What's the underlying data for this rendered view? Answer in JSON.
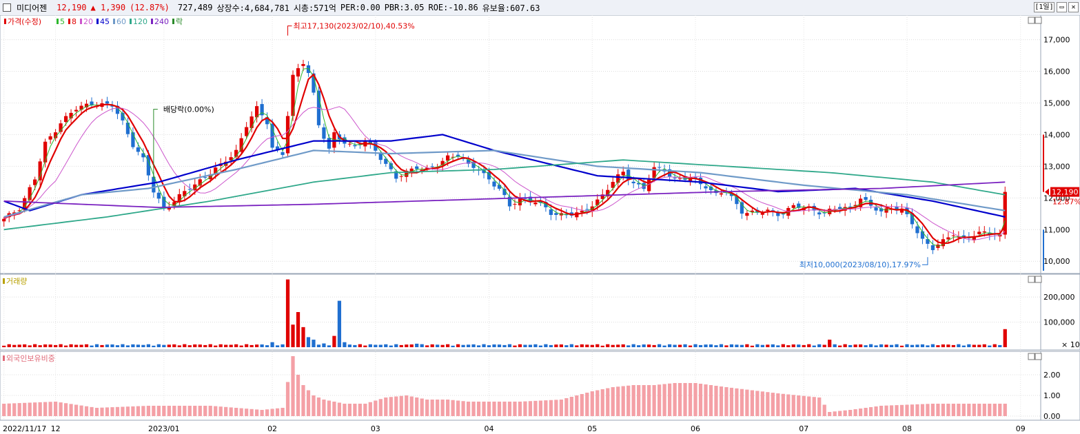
{
  "header": {
    "name": "미디어젠",
    "price": "12,190",
    "change": "▲ 1,390",
    "change_pct": "(12.87%)",
    "volume": "727,489",
    "shares": "상장수:4,684,781",
    "mcap": "시총:571억",
    "per": "PER:0.00",
    "pbr": "PBR:3.05",
    "roe": "ROE:-10.86",
    "reserve": "유보율:607.63",
    "period": "[1일]",
    "colors": {
      "up": "#e00000",
      "down": "#1f6fd0"
    }
  },
  "chart_data": [
    {
      "type": "candlestick",
      "legend": [
        {
          "label": "가격(수정)",
          "color": "#e00000"
        },
        {
          "label": "5",
          "color": "#2db82d"
        },
        {
          "label": "8",
          "color": "#e00000"
        },
        {
          "label": "20",
          "color": "#cc55cc"
        },
        {
          "label": "45",
          "color": "#0000cc"
        },
        {
          "label": "60",
          "color": "#6f9ac8"
        },
        {
          "label": "120",
          "color": "#2fa88a"
        },
        {
          "label": "240",
          "color": "#7a22c0"
        },
        {
          "label": "락",
          "color": "#2a8a2a"
        }
      ],
      "ylim": [
        9700,
        17600
      ],
      "yticks": [
        {
          "value": 10000,
          "label": "10,000"
        },
        {
          "value": 11000,
          "label": "11,000"
        },
        {
          "value": 12000,
          "label": "12,000"
        },
        {
          "value": 13000,
          "label": "13,000"
        },
        {
          "value": 14000,
          "label": "14,000"
        },
        {
          "value": 15000,
          "label": "15,000"
        },
        {
          "value": 16000,
          "label": "16,000"
        },
        {
          "value": 17000,
          "label": "17,000"
        }
      ],
      "x_labels": [
        {
          "label": "2022/11/17",
          "day": 0
        },
        {
          "label": "12",
          "day": 10
        },
        {
          "label": "2023/01",
          "day": 31
        },
        {
          "label": "02",
          "day": 52
        },
        {
          "label": "03",
          "day": 72
        },
        {
          "label": "04",
          "day": 94
        },
        {
          "label": "05",
          "day": 114
        },
        {
          "label": "06",
          "day": 134
        },
        {
          "label": "07",
          "day": 155
        },
        {
          "label": "08",
          "day": 175
        },
        {
          "label": "09",
          "day": 197
        }
      ],
      "days": 195,
      "price_keypoints": [
        [
          0,
          11300
        ],
        [
          3,
          11700
        ],
        [
          6,
          12600
        ],
        [
          8,
          13700
        ],
        [
          11,
          14400
        ],
        [
          14,
          14800
        ],
        [
          17,
          15000
        ],
        [
          21,
          14900
        ],
        [
          23,
          14400
        ],
        [
          25,
          13700
        ],
        [
          27,
          13200
        ],
        [
          29,
          12200
        ],
        [
          31,
          11700
        ],
        [
          33,
          11900
        ],
        [
          36,
          12300
        ],
        [
          39,
          12700
        ],
        [
          42,
          13000
        ],
        [
          45,
          13500
        ],
        [
          47,
          14300
        ],
        [
          49,
          14800
        ],
        [
          51,
          14400
        ],
        [
          52,
          13600
        ],
        [
          54,
          13400
        ],
        [
          55,
          14600
        ],
        [
          56,
          15800
        ],
        [
          58,
          16300
        ],
        [
          59,
          16000
        ],
        [
          60,
          15300
        ],
        [
          61,
          14300
        ],
        [
          62,
          13900
        ],
        [
          63,
          13500
        ],
        [
          64,
          14000
        ],
        [
          66,
          13800
        ],
        [
          68,
          13600
        ],
        [
          70,
          13800
        ],
        [
          72,
          13500
        ],
        [
          74,
          13100
        ],
        [
          76,
          12600
        ],
        [
          78,
          12800
        ],
        [
          80,
          13000
        ],
        [
          82,
          12900
        ],
        [
          84,
          13000
        ],
        [
          86,
          13300
        ],
        [
          88,
          13400
        ],
        [
          90,
          13000
        ],
        [
          92,
          12900
        ],
        [
          94,
          12600
        ],
        [
          96,
          12300
        ],
        [
          98,
          11700
        ],
        [
          100,
          12000
        ],
        [
          103,
          11900
        ],
        [
          106,
          11500
        ],
        [
          109,
          11500
        ],
        [
          112,
          11500
        ],
        [
          114,
          11800
        ],
        [
          116,
          12100
        ],
        [
          118,
          12500
        ],
        [
          120,
          12800
        ],
        [
          122,
          12500
        ],
        [
          124,
          12300
        ],
        [
          126,
          12900
        ],
        [
          128,
          12900
        ],
        [
          130,
          12600
        ],
        [
          133,
          12600
        ],
        [
          136,
          12400
        ],
        [
          138,
          12100
        ],
        [
          140,
          12200
        ],
        [
          143,
          11600
        ],
        [
          146,
          11500
        ],
        [
          148,
          11600
        ],
        [
          150,
          11500
        ],
        [
          153,
          11700
        ],
        [
          156,
          11700
        ],
        [
          159,
          11500
        ],
        [
          162,
          11700
        ],
        [
          164,
          11700
        ],
        [
          166,
          12000
        ],
        [
          168,
          11700
        ],
        [
          170,
          11600
        ],
        [
          172,
          11700
        ],
        [
          174,
          11600
        ],
        [
          176,
          11200
        ],
        [
          178,
          10700
        ],
        [
          180,
          10400
        ],
        [
          182,
          10600
        ],
        [
          184,
          10900
        ],
        [
          186,
          10700
        ],
        [
          188,
          10800
        ],
        [
          190,
          10900
        ],
        [
          192,
          10900
        ],
        [
          193,
          10800
        ],
        [
          194,
          12190
        ]
      ],
      "ma_lines": [
        {
          "name": "5",
          "color": "#2db82d",
          "width": 1,
          "lag": 2
        },
        {
          "name": "8",
          "color": "#e00000",
          "width": 2.2,
          "lag": 4
        },
        {
          "name": "20",
          "color": "#cc55cc",
          "width": 1,
          "lag": 10
        },
        {
          "name": "45",
          "color": "#0000cc",
          "width": 2.2,
          "keypoints": [
            [
              0,
              11900
            ],
            [
              5,
              11600
            ],
            [
              15,
              12100
            ],
            [
              30,
              12500
            ],
            [
              45,
              13200
            ],
            [
              60,
              13800
            ],
            [
              75,
              13800
            ],
            [
              85,
              14000
            ],
            [
              95,
              13500
            ],
            [
              115,
              12700
            ],
            [
              135,
              12500
            ],
            [
              150,
              12200
            ],
            [
              165,
              12300
            ],
            [
              180,
              11900
            ],
            [
              194,
              11400
            ]
          ]
        },
        {
          "name": "60",
          "color": "#6f9ac8",
          "width": 2.2,
          "keypoints": [
            [
              0,
              11400
            ],
            [
              15,
              12100
            ],
            [
              28,
              12300
            ],
            [
              45,
              12900
            ],
            [
              60,
              13500
            ],
            [
              75,
              13400
            ],
            [
              95,
              13500
            ],
            [
              115,
              13000
            ],
            [
              135,
              12800
            ],
            [
              155,
              12400
            ],
            [
              175,
              12100
            ],
            [
              194,
              11600
            ]
          ]
        },
        {
          "name": "120",
          "color": "#2fa88a",
          "width": 1.8,
          "keypoints": [
            [
              0,
              11000
            ],
            [
              20,
              11400
            ],
            [
              40,
              11900
            ],
            [
              60,
              12500
            ],
            [
              75,
              12800
            ],
            [
              95,
              12900
            ],
            [
              120,
              13200
            ],
            [
              140,
              13000
            ],
            [
              160,
              12800
            ],
            [
              180,
              12500
            ],
            [
              194,
              12100
            ]
          ]
        },
        {
          "name": "240",
          "color": "#7a22c0",
          "width": 1.8,
          "keypoints": [
            [
              0,
              11900
            ],
            [
              30,
              11700
            ],
            [
              60,
              11800
            ],
            [
              100,
              12000
            ],
            [
              140,
              12200
            ],
            [
              170,
              12300
            ],
            [
              194,
              12500
            ]
          ]
        }
      ],
      "annotations": [
        {
          "text": "최고17,130(2023/02/10),40.53%",
          "day": 55,
          "value": 17130,
          "kind": "high"
        },
        {
          "text": "배당락(0.00%)",
          "day": 29,
          "value": 14800,
          "kind": "dividend"
        },
        {
          "text": "최저10,000(2023/08/10),17.97%",
          "day": 179,
          "value": 10000,
          "kind": "low"
        }
      ],
      "last_price_label": "12,190",
      "last_pct_label": "12.87%"
    },
    {
      "type": "bar",
      "title": "거래량",
      "ylim": [
        0,
        280000
      ],
      "yticks": [
        {
          "value": 100000,
          "label": "100,000"
        },
        {
          "value": 200000,
          "label": "200,000"
        }
      ],
      "scale_label": "× 10",
      "values_note": "daily volume",
      "spikes": [
        [
          52,
          20000
        ],
        [
          55,
          270000
        ],
        [
          56,
          90000
        ],
        [
          57,
          140000
        ],
        [
          58,
          80000
        ],
        [
          59,
          40000
        ],
        [
          60,
          30000
        ],
        [
          62,
          15000
        ],
        [
          64,
          45000
        ],
        [
          65,
          185000
        ],
        [
          66,
          20000
        ],
        [
          80,
          14000
        ],
        [
          160,
          30000
        ],
        [
          194,
          72000
        ]
      ],
      "base": 6000
    },
    {
      "type": "bar",
      "title": "외국인보유비중",
      "ylim": [
        0,
        3.0
      ],
      "yticks": [
        {
          "value": 0,
          "label": "0.00"
        },
        {
          "value": 1,
          "label": "1.00"
        },
        {
          "value": 2,
          "label": "2.00"
        }
      ],
      "keypoints": [
        [
          0,
          0.6
        ],
        [
          10,
          0.7
        ],
        [
          18,
          0.4
        ],
        [
          28,
          0.5
        ],
        [
          40,
          0.5
        ],
        [
          50,
          0.3
        ],
        [
          54,
          0.4
        ],
        [
          56,
          2.9
        ],
        [
          57,
          2.0
        ],
        [
          58,
          1.5
        ],
        [
          60,
          1.0
        ],
        [
          62,
          0.8
        ],
        [
          66,
          0.6
        ],
        [
          70,
          0.6
        ],
        [
          74,
          0.9
        ],
        [
          78,
          1.0
        ],
        [
          82,
          0.8
        ],
        [
          86,
          0.8
        ],
        [
          90,
          0.7
        ],
        [
          100,
          0.7
        ],
        [
          108,
          0.8
        ],
        [
          114,
          1.2
        ],
        [
          118,
          1.4
        ],
        [
          122,
          1.5
        ],
        [
          126,
          1.5
        ],
        [
          130,
          1.6
        ],
        [
          134,
          1.6
        ],
        [
          140,
          1.4
        ],
        [
          150,
          1.1
        ],
        [
          158,
          0.9
        ],
        [
          160,
          0.2
        ],
        [
          164,
          0.3
        ],
        [
          170,
          0.5
        ],
        [
          180,
          0.6
        ],
        [
          194,
          0.6
        ]
      ]
    }
  ]
}
